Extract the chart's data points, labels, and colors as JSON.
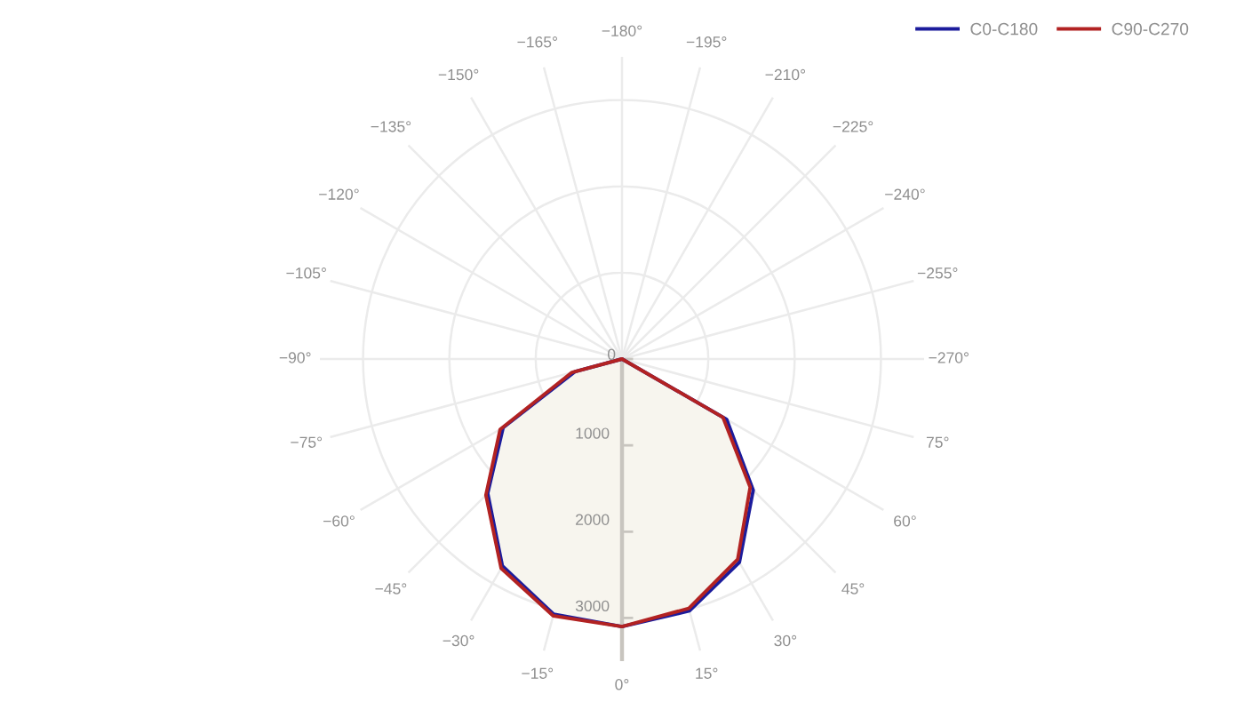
{
  "chart_data": {
    "type": "radar",
    "categories": [
      "−180°",
      "−195°",
      "−210°",
      "−225°",
      "−240°",
      "−255°",
      "−270°",
      "75°",
      "60°",
      "45°",
      "30°",
      "15°",
      "0°",
      "−15°",
      "−30°",
      "−45°",
      "−60°",
      "−75°",
      "−90°",
      "−105°",
      "−120°",
      "−135°",
      "−150°",
      "−165°"
    ],
    "series": [
      {
        "name": "C0-C180",
        "color": "#1c1c9c",
        "type": "area",
        "values": [
          0,
          0,
          0,
          0,
          0,
          0,
          0,
          0,
          1400,
          2150,
          2720,
          3020,
          3100,
          3060,
          2770,
          2200,
          1590,
          560,
          0,
          0,
          0,
          0,
          0,
          0
        ]
      },
      {
        "name": "C90-C270",
        "color": "#b22222",
        "type": "area",
        "values": [
          0,
          0,
          0,
          0,
          0,
          0,
          0,
          0,
          1350,
          2100,
          2680,
          2990,
          3100,
          3080,
          2800,
          2230,
          1630,
          600,
          0,
          0,
          0,
          0,
          0,
          0
        ]
      }
    ],
    "ylim": [
      0,
      3500
    ],
    "yticks": [
      0,
      1000,
      2000,
      3000
    ],
    "grid": true,
    "legend": "top right"
  }
}
